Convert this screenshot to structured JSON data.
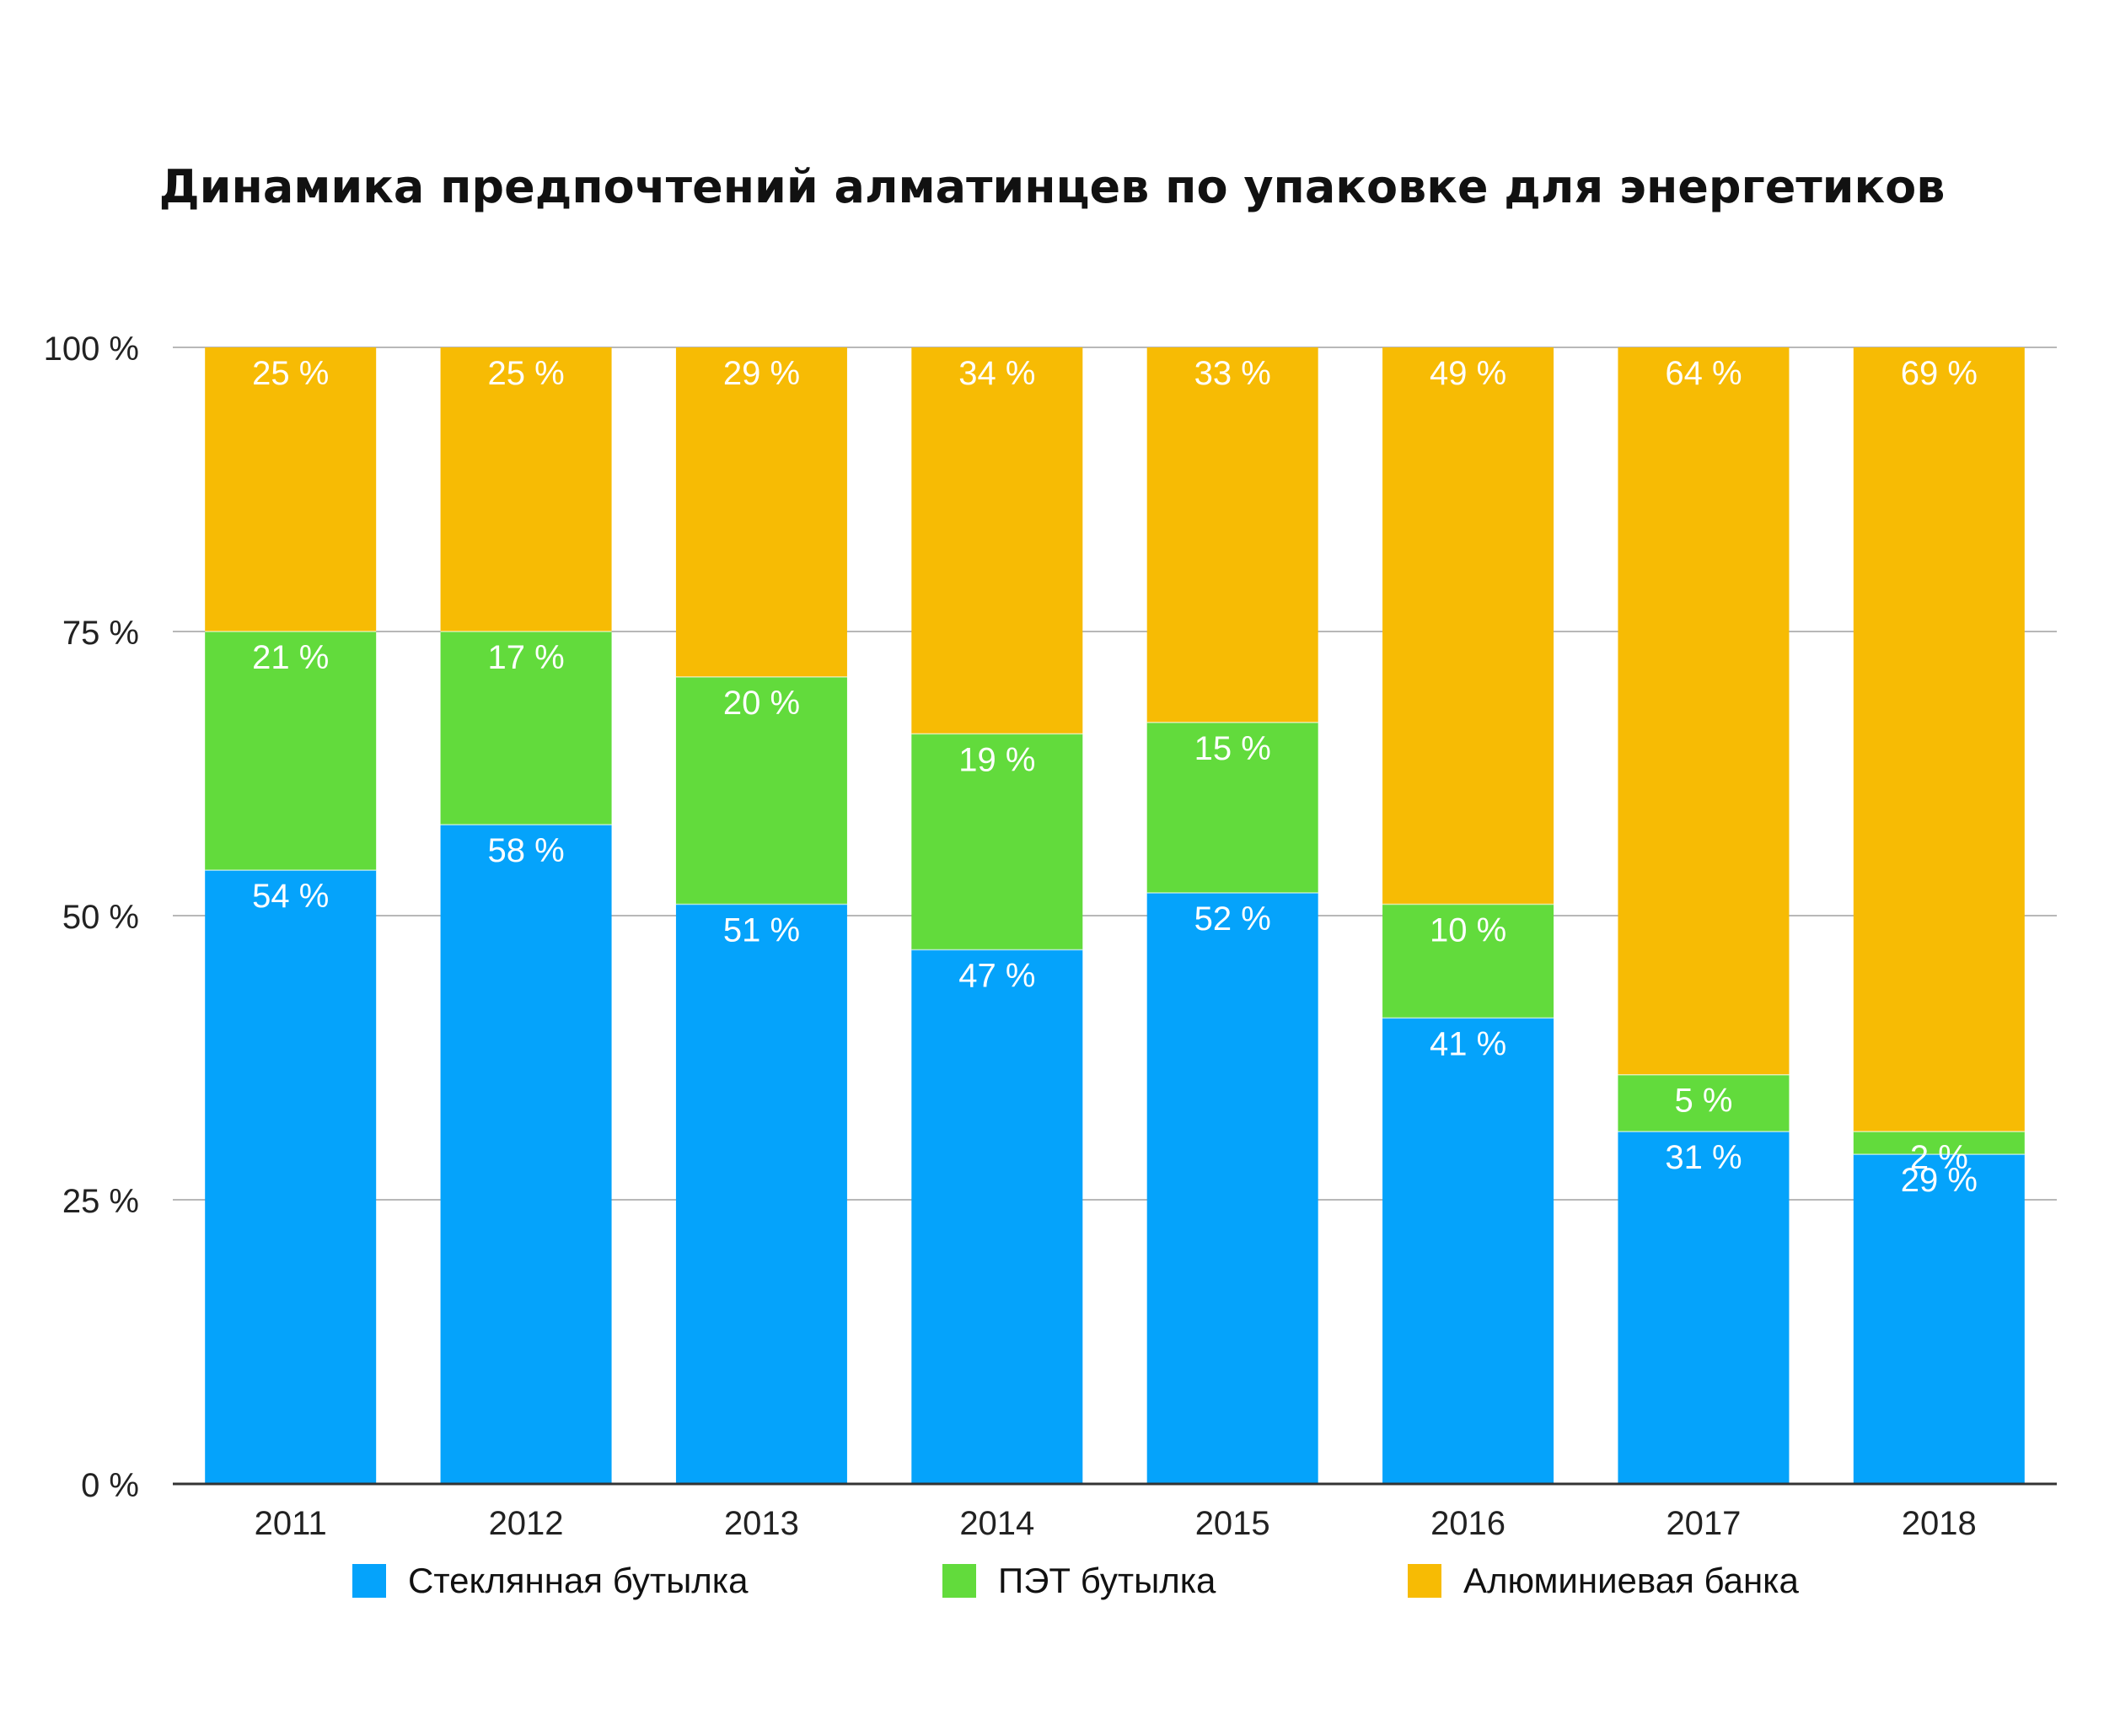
{
  "chart_data": {
    "type": "bar",
    "stacked": true,
    "title": "Динамика предпочтений алматинцев по упаковке  для энергетиков",
    "xlabel": "",
    "ylabel": "",
    "categories": [
      "2011",
      "2012",
      "2013",
      "2014",
      "2015",
      "2016",
      "2017",
      "2018"
    ],
    "series": [
      {
        "name": "Стеклянная бутылка",
        "color": "#05A3FB",
        "values": [
          54,
          58,
          51,
          47,
          52,
          41,
          31,
          29
        ]
      },
      {
        "name": "ПЭТ бутылка",
        "color": "#62DB3C",
        "values": [
          21,
          17,
          20,
          19,
          15,
          10,
          5,
          2
        ]
      },
      {
        "name": "Алюминиевая банка",
        "color": "#F7BB04",
        "values": [
          25,
          25,
          29,
          34,
          33,
          49,
          64,
          69
        ]
      }
    ],
    "ylim": [
      0,
      100
    ],
    "yticks": [
      0,
      25,
      50,
      75,
      100
    ],
    "ytick_labels": [
      "0 %",
      "25 %",
      "50 %",
      "75 %",
      "100 %"
    ],
    "value_suffix": " %",
    "grid": true,
    "legend_position": "bottom"
  }
}
